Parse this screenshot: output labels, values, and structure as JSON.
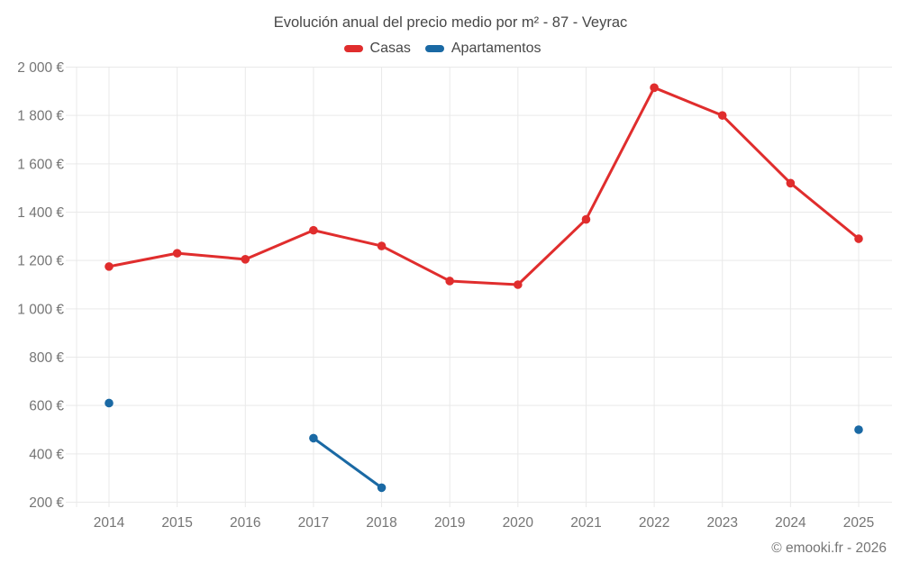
{
  "header": {
    "title": "Evolución anual del precio medio por m² - 87 - Veyrac"
  },
  "legend": {
    "items": [
      {
        "label": "Casas",
        "color": "#e02d2d"
      },
      {
        "label": "Apartamentos",
        "color": "#1a69a4"
      }
    ]
  },
  "footer": {
    "credit": "© emooki.fr - 2026"
  },
  "colors": {
    "grid": "#e9e9e9",
    "axis_label": "#757575",
    "title_text": "#474747"
  },
  "chart_data": {
    "type": "line",
    "title": "Evolución anual del precio medio por m² - 87 - Veyrac",
    "x": [
      "2014",
      "2015",
      "2016",
      "2017",
      "2018",
      "2019",
      "2020",
      "2021",
      "2022",
      "2023",
      "2024",
      "2025"
    ],
    "series": [
      {
        "name": "Casas",
        "color": "#e02d2d",
        "values": [
          1175,
          1230,
          1205,
          1325,
          1260,
          1115,
          1100,
          1370,
          1915,
          1800,
          1520,
          1290
        ]
      },
      {
        "name": "Apartamentos",
        "color": "#1a69a4",
        "values": [
          610,
          null,
          null,
          465,
          260,
          null,
          null,
          null,
          null,
          null,
          null,
          500
        ]
      }
    ],
    "xlabel": "",
    "ylabel": "",
    "ylim": [
      200,
      2000
    ],
    "ytick_step": 200,
    "ytick_suffix": " €",
    "grid": true,
    "legend_position": "top"
  }
}
